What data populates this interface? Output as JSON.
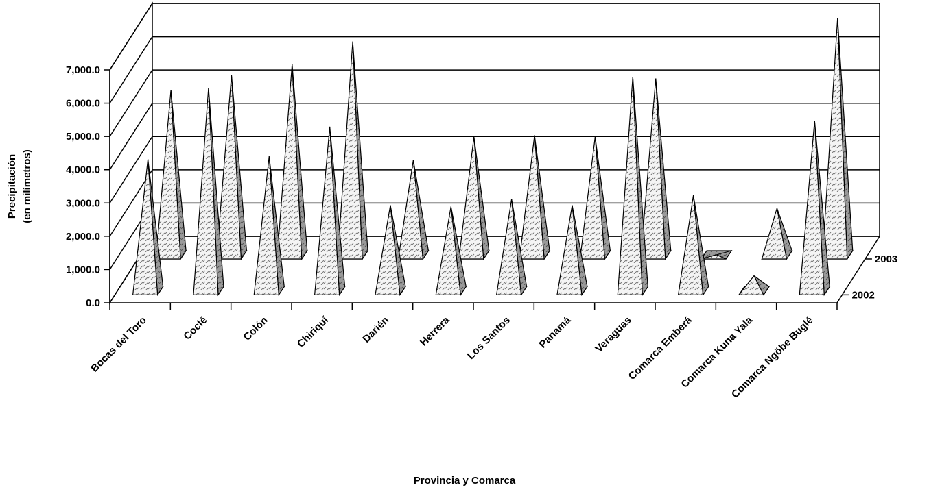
{
  "chart_data": {
    "type": "pyramid3d",
    "x_label": "Provincia y Comarca",
    "y_label": [
      "Precipitación",
      "(en milímetros)"
    ],
    "categories": [
      "Bocas del Toro",
      "Coclé",
      "Colón",
      "Chiriquí",
      "Darién",
      "Herrera",
      "Los Santos",
      "Panamá",
      "Veraguas",
      "Comarca Emberá",
      "Comarca Kuna Yala",
      "Comarca Ngöbe Buglé"
    ],
    "series": [
      {
        "name": "2002",
        "values": [
          3950,
          6100,
          4040,
          4930,
          2570,
          2530,
          2750,
          2570,
          6430,
          2870,
          450,
          5110
        ]
      },
      {
        "name": "2003",
        "values": [
          4950,
          5400,
          5730,
          6410,
          2850,
          3550,
          3590,
          3550,
          5300,
          0,
          1400,
          7120
        ]
      }
    ],
    "ylim": [
      0,
      7000
    ],
    "yticks": [
      {
        "value": 0,
        "label": "0.0"
      },
      {
        "value": 1000,
        "label": "1,000.0"
      },
      {
        "value": 2000,
        "label": "2,000.0"
      },
      {
        "value": 3000,
        "label": "3,000.0"
      },
      {
        "value": 4000,
        "label": "4,000.0"
      },
      {
        "value": 5000,
        "label": "5,000.0"
      },
      {
        "value": 6000,
        "label": "6,000.0"
      },
      {
        "value": 7000,
        "label": "7,000.0"
      }
    ],
    "grid": true
  }
}
